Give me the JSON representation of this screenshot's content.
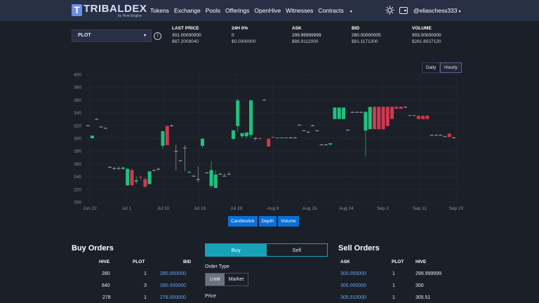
{
  "header": {
    "logo_letter": "T",
    "logo_text": "TRIBALDEX",
    "logo_sub": "by Hive-Engine",
    "nav": [
      "Tokens",
      "Exchange",
      "Pools",
      "Offerings",
      "OpenHive",
      "Witnesses",
      "Contracts"
    ],
    "contracts_caret": "▾",
    "username": "@eliaschess333",
    "user_caret": "▾"
  },
  "ticker": {
    "symbol": "PLOT",
    "symbol_caret": "▾",
    "info": "i",
    "stats": [
      {
        "label": "LAST PRICE",
        "value": "301.00000000",
        "usd": "$87.2009040"
      },
      {
        "label": "24H 0%",
        "value": "0",
        "usd": "$0.0000000"
      },
      {
        "label": "ASK",
        "value": "299.99999999",
        "usd": "$86.9112000"
      },
      {
        "label": "BID",
        "value": "280.00000005",
        "usd": "$81.1171200"
      },
      {
        "label": "VOLUME",
        "value": "903.00000000",
        "usd": "$261.6027120"
      }
    ]
  },
  "range_buttons": [
    "Daily",
    "Hourly"
  ],
  "chart_tabs": [
    "Candlestick",
    "Depth",
    "Volume"
  ],
  "chart_data": {
    "type": "candlestick",
    "ylim": [
      200,
      400
    ],
    "yticks": [
      200,
      220,
      240,
      260,
      280,
      300,
      320,
      340,
      360,
      380,
      400
    ],
    "xticks": [
      "Jun 22",
      "Jul 1",
      "Jul 10",
      "Jul 19",
      "Jul 28",
      "Aug 6",
      "Aug 15",
      "Aug 24",
      "Sep 2",
      "Sep 11",
      "Sep 20"
    ],
    "colors": {
      "up": "#1fc27d",
      "down": "#d0384f",
      "doji": "#9aa0aa"
    },
    "candles": [
      {
        "x": 0.5,
        "o": 320,
        "h": 321,
        "l": 319,
        "c": 320
      },
      {
        "x": 1.5,
        "o": 300,
        "h": 304,
        "l": 299,
        "c": 304
      },
      {
        "x": 2.5,
        "o": 330,
        "h": 331,
        "l": 329,
        "c": 330
      },
      {
        "x": 3.5,
        "o": 318,
        "h": 319,
        "l": 317,
        "c": 318
      },
      {
        "x": 4.5,
        "o": 316,
        "h": 317,
        "l": 315,
        "c": 316
      },
      {
        "x": 5.5,
        "o": 255,
        "h": 256,
        "l": 254,
        "c": 255
      },
      {
        "x": 6.5,
        "o": 253,
        "h": 255,
        "l": 250,
        "c": 253
      },
      {
        "x": 7.5,
        "o": 253,
        "h": 256,
        "l": 250,
        "c": 253
      },
      {
        "x": 8.5,
        "o": 252,
        "h": 255,
        "l": 250,
        "c": 254
      },
      {
        "x": 9.5,
        "o": 226,
        "h": 253,
        "l": 226,
        "c": 252
      },
      {
        "x": 10.5,
        "o": 250,
        "h": 253,
        "l": 226,
        "c": 226
      },
      {
        "x": 11.5,
        "o": 232,
        "h": 240,
        "l": 228,
        "c": 234
      },
      {
        "x": 12.5,
        "o": 239,
        "h": 242,
        "l": 234,
        "c": 238
      },
      {
        "x": 13.5,
        "o": 236,
        "h": 240,
        "l": 222,
        "c": 224
      },
      {
        "x": 14.5,
        "o": 228,
        "h": 248,
        "l": 228,
        "c": 248
      },
      {
        "x": 15.5,
        "o": 250,
        "h": 251,
        "l": 248,
        "c": 250
      },
      {
        "x": 16.5,
        "o": 252,
        "h": 254,
        "l": 249,
        "c": 252
      },
      {
        "x": 17.5,
        "o": 288,
        "h": 311,
        "l": 283,
        "c": 311
      },
      {
        "x": 18.5,
        "o": 319,
        "h": 320,
        "l": 289,
        "c": 289
      },
      {
        "x": 19.5,
        "o": 320,
        "h": 321,
        "l": 318,
        "c": 320
      },
      {
        "x": 20.5,
        "o": 280,
        "h": 290,
        "l": 249,
        "c": 280
      },
      {
        "x": 21.5,
        "o": 265,
        "h": 266,
        "l": 264,
        "c": 265
      },
      {
        "x": 22.5,
        "o": 285,
        "h": 289,
        "l": 248,
        "c": 285
      },
      {
        "x": 23.5,
        "o": 246,
        "h": 249,
        "l": 245,
        "c": 247
      },
      {
        "x": 24.5,
        "o": 241,
        "h": 242,
        "l": 240,
        "c": 241
      },
      {
        "x": 25.5,
        "o": 236,
        "h": 256,
        "l": 231,
        "c": 236
      },
      {
        "x": 26.5,
        "o": 288,
        "h": 300,
        "l": 285,
        "c": 299
      },
      {
        "x": 27.5,
        "o": 246,
        "h": 247,
        "l": 245,
        "c": 246
      },
      {
        "x": 28.5,
        "o": 225,
        "h": 264,
        "l": 222,
        "c": 250
      },
      {
        "x": 29.5,
        "o": 222,
        "h": 249,
        "l": 222,
        "c": 243
      },
      {
        "x": 30.5,
        "o": 244,
        "h": 246,
        "l": 243,
        "c": 244
      },
      {
        "x": 31.5,
        "o": 241,
        "h": 245,
        "l": 240,
        "c": 241
      },
      {
        "x": 32.5,
        "o": 244,
        "h": 247,
        "l": 243,
        "c": 244
      },
      {
        "x": 33.5,
        "o": 299,
        "h": 313,
        "l": 297,
        "c": 312
      },
      {
        "x": 34.5,
        "o": 319,
        "h": 362,
        "l": 310,
        "c": 359
      },
      {
        "x": 35.5,
        "o": 303,
        "h": 307,
        "l": 300,
        "c": 308
      },
      {
        "x": 36.5,
        "o": 303,
        "h": 307,
        "l": 300,
        "c": 309
      },
      {
        "x": 37.5,
        "o": 305,
        "h": 361,
        "l": 300,
        "c": 359
      },
      {
        "x": 38.5,
        "o": 300,
        "h": 302,
        "l": 296,
        "c": 300
      },
      {
        "x": 39.5,
        "o": 300,
        "h": 301,
        "l": 298,
        "c": 299
      },
      {
        "x": 40.5,
        "o": 360,
        "h": 361,
        "l": 359,
        "c": 360
      },
      {
        "x": 41.5,
        "o": 299,
        "h": 300,
        "l": 287,
        "c": 287
      },
      {
        "x": 42.5,
        "o": 302,
        "h": 303,
        "l": 300,
        "c": 301
      },
      {
        "x": 43.5,
        "o": 300,
        "h": 301,
        "l": 300,
        "c": 301
      },
      {
        "x": 44.5,
        "o": 300,
        "h": 301,
        "l": 300,
        "c": 301
      },
      {
        "x": 45.5,
        "o": 300,
        "h": 301,
        "l": 300,
        "c": 301
      },
      {
        "x": 46.5,
        "o": 301,
        "h": 302,
        "l": 300,
        "c": 301
      },
      {
        "x": 47.5,
        "o": 301,
        "h": 302,
        "l": 300,
        "c": 301
      },
      {
        "x": 48.5,
        "o": 321,
        "h": 322,
        "l": 320,
        "c": 321
      },
      {
        "x": 49.5,
        "o": 312,
        "h": 313,
        "l": 311,
        "c": 312
      },
      {
        "x": 50.5,
        "o": 310,
        "h": 311,
        "l": 309,
        "c": 310
      },
      {
        "x": 51.5,
        "o": 320,
        "h": 321,
        "l": 319,
        "c": 320
      },
      {
        "x": 52.5,
        "o": 312,
        "h": 313,
        "l": 311,
        "c": 312
      },
      {
        "x": 53.5,
        "o": 290,
        "h": 291,
        "l": 289,
        "c": 290
      },
      {
        "x": 54.5,
        "o": 290,
        "h": 291,
        "l": 289,
        "c": 290
      },
      {
        "x": 55.5,
        "o": 290,
        "h": 292,
        "l": 289,
        "c": 292
      },
      {
        "x": 56.5,
        "o": 330,
        "h": 348,
        "l": 330,
        "c": 348
      },
      {
        "x": 57.5,
        "o": 330,
        "h": 348,
        "l": 330,
        "c": 348
      },
      {
        "x": 58.5,
        "o": 330,
        "h": 348,
        "l": 330,
        "c": 348
      },
      {
        "x": 59.5,
        "o": 313,
        "h": 314,
        "l": 312,
        "c": 313
      },
      {
        "x": 60.5,
        "o": 341,
        "h": 342,
        "l": 340,
        "c": 341
      },
      {
        "x": 61.5,
        "o": 341,
        "h": 342,
        "l": 340,
        "c": 341
      },
      {
        "x": 62.5,
        "o": 341,
        "h": 342,
        "l": 340,
        "c": 341
      },
      {
        "x": 63.5,
        "o": 312,
        "h": 343,
        "l": 272,
        "c": 341
      },
      {
        "x": 64.5,
        "o": 314,
        "h": 349,
        "l": 314,
        "c": 349
      },
      {
        "x": 65.5,
        "o": 349,
        "h": 350,
        "l": 314,
        "c": 314
      },
      {
        "x": 66.5,
        "o": 349,
        "h": 350,
        "l": 314,
        "c": 314
      },
      {
        "x": 67.5,
        "o": 349,
        "h": 350,
        "l": 314,
        "c": 314
      },
      {
        "x": 68.5,
        "o": 349,
        "h": 350,
        "l": 319,
        "c": 319
      },
      {
        "x": 69.5,
        "o": 349,
        "h": 350,
        "l": 330,
        "c": 330
      },
      {
        "x": 70.5,
        "o": 349,
        "h": 350,
        "l": 346,
        "c": 346
      },
      {
        "x": 71.5,
        "o": 349,
        "h": 350,
        "l": 346,
        "c": 346
      },
      {
        "x": 72.5,
        "o": 349,
        "h": 350,
        "l": 348,
        "c": 349
      },
      {
        "x": 73.5,
        "o": 335,
        "h": 336,
        "l": 335,
        "c": 336
      },
      {
        "x": 74.5,
        "o": 335,
        "h": 336,
        "l": 335,
        "c": 336
      },
      {
        "x": 75.5,
        "o": 335,
        "h": 336,
        "l": 330,
        "c": 330
      },
      {
        "x": 76.5,
        "o": 335,
        "h": 336,
        "l": 330,
        "c": 330
      },
      {
        "x": 77.5,
        "o": 335,
        "h": 336,
        "l": 330,
        "c": 330
      },
      {
        "x": 78.5,
        "o": 305,
        "h": 306,
        "l": 304,
        "c": 305
      },
      {
        "x": 79.5,
        "o": 305,
        "h": 306,
        "l": 304,
        "c": 305
      },
      {
        "x": 80.5,
        "o": 305,
        "h": 306,
        "l": 304,
        "c": 305
      },
      {
        "x": 81.5,
        "o": 303,
        "h": 304,
        "l": 302,
        "c": 303
      },
      {
        "x": 82.5,
        "o": 307,
        "h": 308,
        "l": 302,
        "c": 302
      },
      {
        "x": 83.5,
        "o": 301,
        "h": 302,
        "l": 300,
        "c": 301
      }
    ]
  },
  "buy_orders": {
    "title": "Buy Orders",
    "headers": [
      "HIVE",
      "PLOT",
      "BID"
    ],
    "rows": [
      [
        "280",
        "1",
        "280.000000"
      ],
      [
        "840",
        "3",
        "280.000000"
      ],
      [
        "278",
        "1",
        "278.000000"
      ]
    ]
  },
  "trade": {
    "buy_tab": "Buy",
    "sell_tab": "Sell",
    "order_type_label": "Order Type",
    "limit": "Limit",
    "market": "Market",
    "price_label": "Price"
  },
  "sell_orders": {
    "title": "Sell Orders",
    "headers": [
      "ASK",
      "PLOT",
      "HIVE"
    ],
    "rows": [
      [
        "300.000000",
        "1",
        "299.999999"
      ],
      [
        "300.000000",
        "1",
        "300"
      ],
      [
        "305.510000",
        "1",
        "305.51"
      ]
    ]
  }
}
